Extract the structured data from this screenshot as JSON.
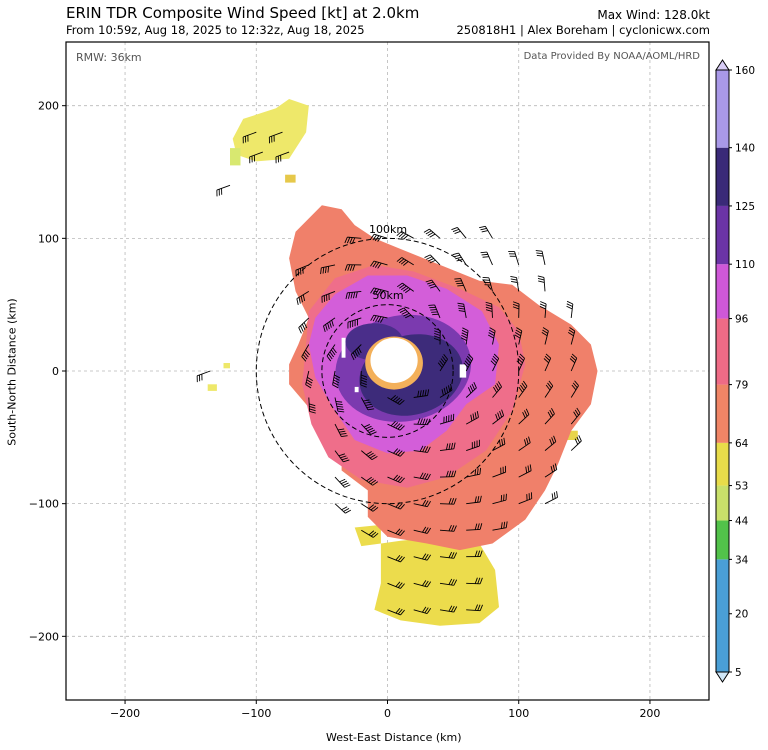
{
  "header": {
    "title": "ERIN TDR Composite Wind Speed [kt] at 2.0km",
    "subtitle": "From 10:59z, Aug 18, 2025 to 12:32z, Aug 18, 2025",
    "max_wind": "Max Wind: 128.0kt",
    "credit": "250818H1 | Alex Boreham | cyclonicwx.com"
  },
  "annotations": {
    "rmw": "RMW: 36km",
    "provider": "Data Provided By NOAA/AOML/HRD",
    "ring_100": "100km",
    "ring_50": "50km"
  },
  "chart_data": {
    "type": "heatmap",
    "xlabel": "West-East Distance (km)",
    "ylabel": "South-North Distance (km)",
    "xlim": [
      -245,
      245
    ],
    "ylim": [
      -248,
      248
    ],
    "xticks": [
      -200,
      -100,
      0,
      100,
      200
    ],
    "yticks": [
      -200,
      -100,
      0,
      100,
      200
    ],
    "xtick_labels": [
      "−200",
      "−100",
      "0",
      "100",
      "200"
    ],
    "ytick_labels": [
      "−200",
      "−100",
      "0",
      "100",
      "200"
    ],
    "grid": true,
    "range_rings_km": [
      50,
      100
    ],
    "rmw_km": 36,
    "max_wind_kt": 128.0,
    "colorbar": {
      "min": 5,
      "max": 160,
      "ticks": [
        5,
        20,
        34,
        44,
        53,
        64,
        79,
        96,
        110,
        125,
        140,
        160
      ],
      "segments": [
        {
          "from": 5,
          "to": 34,
          "color": "#4a9fd6"
        },
        {
          "from": 34,
          "to": 44,
          "color": "#52c24a"
        },
        {
          "from": 44,
          "to": 53,
          "color": "#c9e06a"
        },
        {
          "from": 53,
          "to": 64,
          "color": "#e8dc4a"
        },
        {
          "from": 64,
          "to": 79,
          "color": "#f08566"
        },
        {
          "from": 79,
          "to": 96,
          "color": "#ef6b86"
        },
        {
          "from": 96,
          "to": 110,
          "color": "#cf58d8"
        },
        {
          "from": 110,
          "to": 125,
          "color": "#6b34a6"
        },
        {
          "from": 125,
          "to": 140,
          "color": "#3a2a78"
        },
        {
          "from": 140,
          "to": 160,
          "color": "#a999e8"
        }
      ]
    },
    "regions": [
      {
        "name": "gale-band",
        "speed_kt": 70,
        "color": "#f0806a"
      },
      {
        "name": "storm-band",
        "speed_kt": 90,
        "color": "#ef6e8a"
      },
      {
        "name": "inner-core",
        "speed_kt": 100,
        "color": "#d35ed9"
      },
      {
        "name": "eyewall",
        "speed_kt": 115,
        "color": "#7b3aaf"
      },
      {
        "name": "eyewall-max",
        "speed_kt": 128,
        "color": "#3d2b7a"
      },
      {
        "name": "outer-yellow-south",
        "speed_kt": 58,
        "color": "#ecdc4c"
      },
      {
        "name": "outer-yellow-north",
        "speed_kt": 55,
        "color": "#eee86a"
      }
    ]
  }
}
